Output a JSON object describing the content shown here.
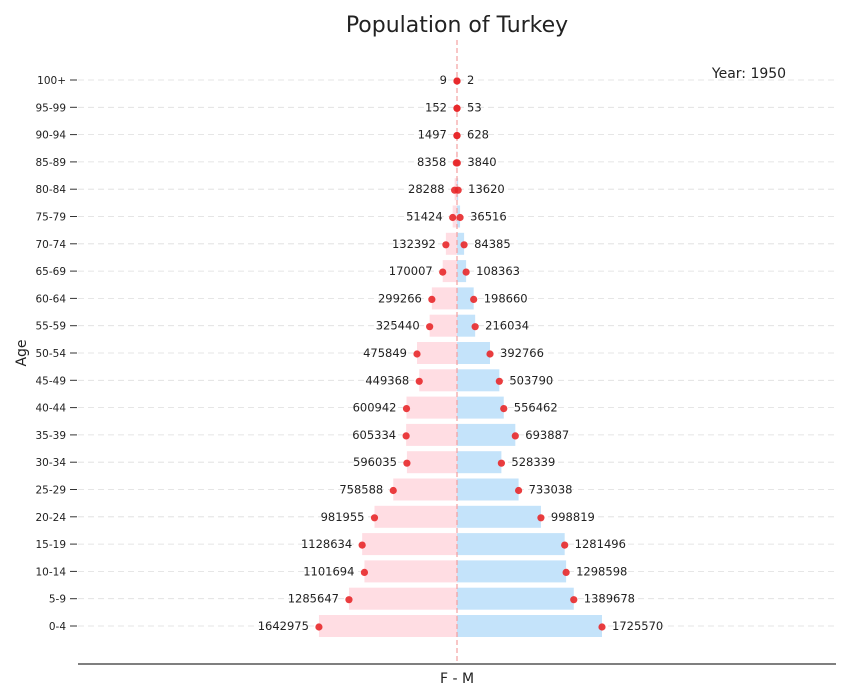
{
  "chart_data": {
    "type": "bar",
    "title": "Population of Turkey",
    "annotation": "Year: 1950",
    "xlabel": "F - M",
    "ylabel": "Age",
    "categories": [
      "0-4",
      "5-9",
      "10-14",
      "15-19",
      "20-24",
      "25-29",
      "30-34",
      "35-39",
      "40-44",
      "45-49",
      "50-54",
      "55-59",
      "60-64",
      "65-69",
      "70-74",
      "75-79",
      "80-84",
      "85-89",
      "90-94",
      "95-99",
      "100+"
    ],
    "series": [
      {
        "values": [
          1642975,
          1285647,
          1101694,
          1128634,
          981955,
          758588,
          596035,
          605334,
          600942,
          449368,
          475849,
          325440,
          299266,
          170007,
          132392,
          51424,
          28288,
          8358,
          1497,
          152,
          9
        ]
      },
      {
        "values": [
          1725570,
          1389678,
          1298598,
          1281496,
          998819,
          733038,
          528339,
          693887,
          556462,
          503790,
          392766,
          216034,
          198660,
          108363,
          84385,
          36516,
          13620,
          3840,
          628,
          53,
          2
        ]
      }
    ],
    "grid": "horizontal dashed",
    "colors": {
      "female": "#ffdde3",
      "male": "#c4e3fa",
      "marker": "#e8282a",
      "center_line": "#f4a0a0"
    }
  }
}
